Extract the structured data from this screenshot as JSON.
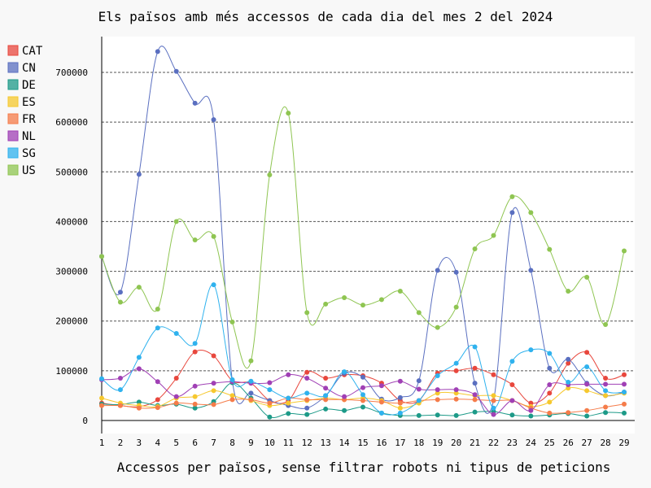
{
  "chart_data": {
    "type": "line",
    "title": "Els països amb més accessos de cada dia del mes 2 del 2024",
    "xlabel": "Accessos per països, sense filtrar robots ni tipus de peticions",
    "ylabel": "",
    "x": [
      1,
      2,
      3,
      4,
      5,
      6,
      7,
      8,
      9,
      10,
      11,
      12,
      13,
      14,
      15,
      16,
      17,
      18,
      19,
      20,
      21,
      22,
      23,
      24,
      25,
      26,
      27,
      28,
      29
    ],
    "ylim": [
      -20000,
      770000
    ],
    "yticks": [
      0,
      100000,
      200000,
      300000,
      400000,
      500000,
      600000,
      700000
    ],
    "ytick_labels": [
      "0",
      "100000",
      "200000",
      "300000",
      "400000",
      "500000",
      "600000",
      "700000"
    ],
    "grid": "horizontal-dashed",
    "legend_position": "top-left",
    "series": [
      {
        "name": "CAT",
        "color": "#e8473d",
        "values": [
          35000,
          30000,
          28000,
          42000,
          85000,
          138000,
          130000,
          80000,
          75000,
          40000,
          40000,
          97000,
          85000,
          92000,
          90000,
          75000,
          40000,
          40000,
          95000,
          100000,
          105000,
          92000,
          72000,
          35000,
          55000,
          115000,
          137000,
          85000,
          92000
        ]
      },
      {
        "name": "CN",
        "color": "#5a6fc0",
        "values": [
          330000,
          258000,
          495000,
          742000,
          702000,
          638000,
          605000,
          80000,
          55000,
          40000,
          30000,
          25000,
          50000,
          95000,
          87000,
          43000,
          46000,
          80000,
          302000,
          298000,
          75000,
          40000,
          418000,
          302000,
          105000,
          123000,
          75000,
          50000,
          57000
        ]
      },
      {
        "name": "DE",
        "color": "#1d9a88",
        "values": [
          33000,
          32000,
          37000,
          30000,
          33000,
          25000,
          38000,
          76000,
          45000,
          7000,
          14000,
          12000,
          23000,
          20000,
          27000,
          15000,
          10000,
          10000,
          11000,
          10000,
          17000,
          18000,
          11000,
          9000,
          11000,
          14000,
          9000,
          16000,
          15000
        ]
      },
      {
        "name": "ES",
        "color": "#f6c82e",
        "values": [
          45000,
          35000,
          30000,
          28000,
          45000,
          48000,
          60000,
          50000,
          40000,
          30000,
          35000,
          40000,
          45000,
          42000,
          45000,
          40000,
          25000,
          35000,
          55000,
          55000,
          50000,
          50000,
          40000,
          28000,
          37000,
          65000,
          60000,
          50000,
          55000
        ]
      },
      {
        "name": "FR",
        "color": "#f57c4a",
        "values": [
          30000,
          30000,
          25000,
          26000,
          35000,
          33000,
          32000,
          42000,
          42000,
          35000,
          45000,
          42000,
          42000,
          42000,
          40000,
          37000,
          35000,
          40000,
          42000,
          43000,
          42000,
          40000,
          40000,
          25000,
          15000,
          16000,
          20000,
          27000,
          33000
        ]
      },
      {
        "name": "NL",
        "color": "#a040b5",
        "values": [
          82000,
          85000,
          104000,
          78000,
          48000,
          69000,
          75000,
          78000,
          75000,
          76000,
          92000,
          85000,
          65000,
          48000,
          66000,
          70000,
          79000,
          63000,
          62000,
          62000,
          52000,
          12000,
          40000,
          20000,
          72000,
          72000,
          73000,
          73000,
          73000
        ]
      },
      {
        "name": "SG",
        "color": "#2fb2ee",
        "values": [
          84000,
          62000,
          127000,
          186000,
          175000,
          155000,
          273000,
          82000,
          79000,
          62000,
          45000,
          55000,
          50000,
          98000,
          52000,
          15000,
          15000,
          40000,
          90000,
          115000,
          148000,
          25000,
          119000,
          142000,
          135000,
          77000,
          108000,
          60000,
          57000
        ]
      },
      {
        "name": "US",
        "color": "#8fc552",
        "values": [
          330000,
          238000,
          268000,
          224000,
          400000,
          363000,
          370000,
          198000,
          120000,
          494000,
          618000,
          217000,
          234000,
          247000,
          232000,
          243000,
          260000,
          217000,
          187000,
          228000,
          345000,
          372000,
          450000,
          418000,
          344000,
          260000,
          288000,
          193000,
          341000
        ]
      }
    ]
  }
}
